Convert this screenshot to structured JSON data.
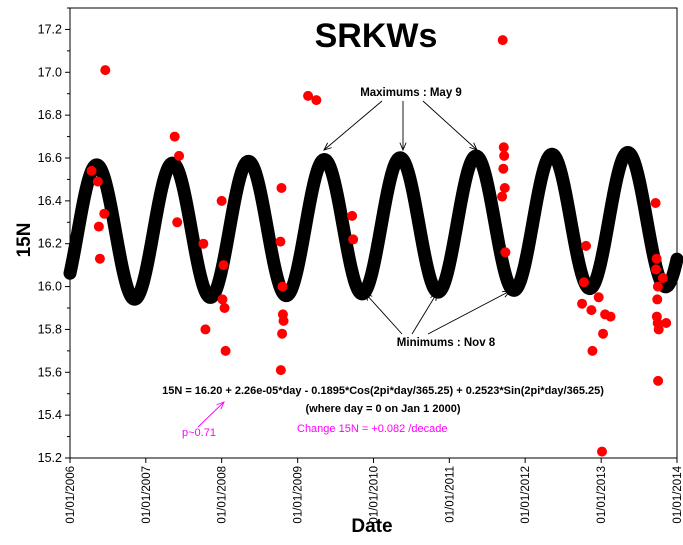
{
  "chart_data": {
    "type": "scatter",
    "title": "SRKWs",
    "xlabel": "Date",
    "ylabel": "15N",
    "ylim": [
      15.2,
      17.3
    ],
    "xlim": [
      "2006-01-01",
      "2014-01-01"
    ],
    "grid": false,
    "y_ticks": [
      "15.2",
      "15.4",
      "15.6",
      "15.8",
      "16.0",
      "16.2",
      "16.4",
      "16.6",
      "16.8",
      "17.0",
      "17.2"
    ],
    "x_ticks": [
      "01/01/2006",
      "01/01/2007",
      "01/01/2008",
      "01/01/2009",
      "01/01/2010",
      "01/01/2011",
      "01/01/2012",
      "01/01/2013",
      "01/01/2014"
    ],
    "fit_curve": {
      "intercept": 16.2,
      "slope_per_day": 2.26e-05,
      "cos_coef": -0.1895,
      "sin_coef": 0.2523,
      "period_days": 365.25,
      "day_zero": "2000-01-01",
      "color": "#000000"
    },
    "points": {
      "color": "#ff0000",
      "data": [
        [
          "2006-04-15",
          16.54
        ],
        [
          "2006-05-15",
          16.49
        ],
        [
          "2006-05-20",
          16.28
        ],
        [
          "2006-05-25",
          16.13
        ],
        [
          "2006-06-20",
          17.01
        ],
        [
          "2006-06-15",
          16.34
        ],
        [
          "2007-05-20",
          16.7
        ],
        [
          "2007-06-10",
          16.61
        ],
        [
          "2007-06-01",
          16.3
        ],
        [
          "2007-10-15",
          15.8
        ],
        [
          "2007-10-05",
          16.2
        ],
        [
          "2008-01-01",
          16.4
        ],
        [
          "2008-01-10",
          16.1
        ],
        [
          "2008-01-05",
          15.94
        ],
        [
          "2008-01-15",
          15.9
        ],
        [
          "2008-01-20",
          15.7
        ],
        [
          "2008-10-15",
          16.46
        ],
        [
          "2008-10-10",
          16.21
        ],
        [
          "2008-10-20",
          16.0
        ],
        [
          "2008-10-22",
          15.87
        ],
        [
          "2008-10-25",
          15.84
        ],
        [
          "2008-10-18",
          15.78
        ],
        [
          "2008-10-12",
          15.61
        ],
        [
          "2009-02-20",
          16.89
        ],
        [
          "2009-04-01",
          16.87
        ],
        [
          "2009-09-20",
          16.33
        ],
        [
          "2009-09-25",
          16.22
        ],
        [
          "2011-09-15",
          17.15
        ],
        [
          "2011-09-20",
          16.65
        ],
        [
          "2011-09-22",
          16.61
        ],
        [
          "2011-09-18",
          16.55
        ],
        [
          "2011-09-25",
          16.46
        ],
        [
          "2011-09-12",
          16.42
        ],
        [
          "2011-09-28",
          16.16
        ],
        [
          "2012-10-20",
          16.19
        ],
        [
          "2012-10-10",
          16.02
        ],
        [
          "2012-10-01",
          15.92
        ],
        [
          "2012-11-15",
          15.89
        ],
        [
          "2012-11-20",
          15.7
        ],
        [
          "2012-12-20",
          15.95
        ],
        [
          "2013-01-10",
          15.78
        ],
        [
          "2013-01-20",
          15.87
        ],
        [
          "2013-02-15",
          15.86
        ],
        [
          "2013-01-05",
          15.23
        ],
        [
          "2013-09-20",
          16.39
        ],
        [
          "2013-09-25",
          16.13
        ],
        [
          "2013-10-01",
          16.0
        ],
        [
          "2013-09-28",
          15.94
        ],
        [
          "2013-09-26",
          15.86
        ],
        [
          "2013-09-30",
          15.83
        ],
        [
          "2013-10-05",
          15.8
        ],
        [
          "2013-10-25",
          16.04
        ],
        [
          "2013-11-10",
          15.83
        ],
        [
          "2013-10-02",
          15.56
        ],
        [
          "2013-09-22",
          16.08
        ]
      ]
    },
    "annotations": {
      "maximums_label": "Maximums : May 9",
      "minimums_label": "Minimums : Nov 8",
      "equation_line1": "15N = 16.20 + 2.26e-05*day - 0.1895*Cos(2pi*day/365.25) + 0.2523*Sin(2pi*day/365.25)",
      "equation_line2": "(where day = 0 on Jan 1 2000)",
      "p_value": "p~0.71",
      "p_value_color": "#ff00ff",
      "change_text": "Change 15N = +0.082 /decade",
      "change_text_color": "#ff00ff"
    }
  }
}
